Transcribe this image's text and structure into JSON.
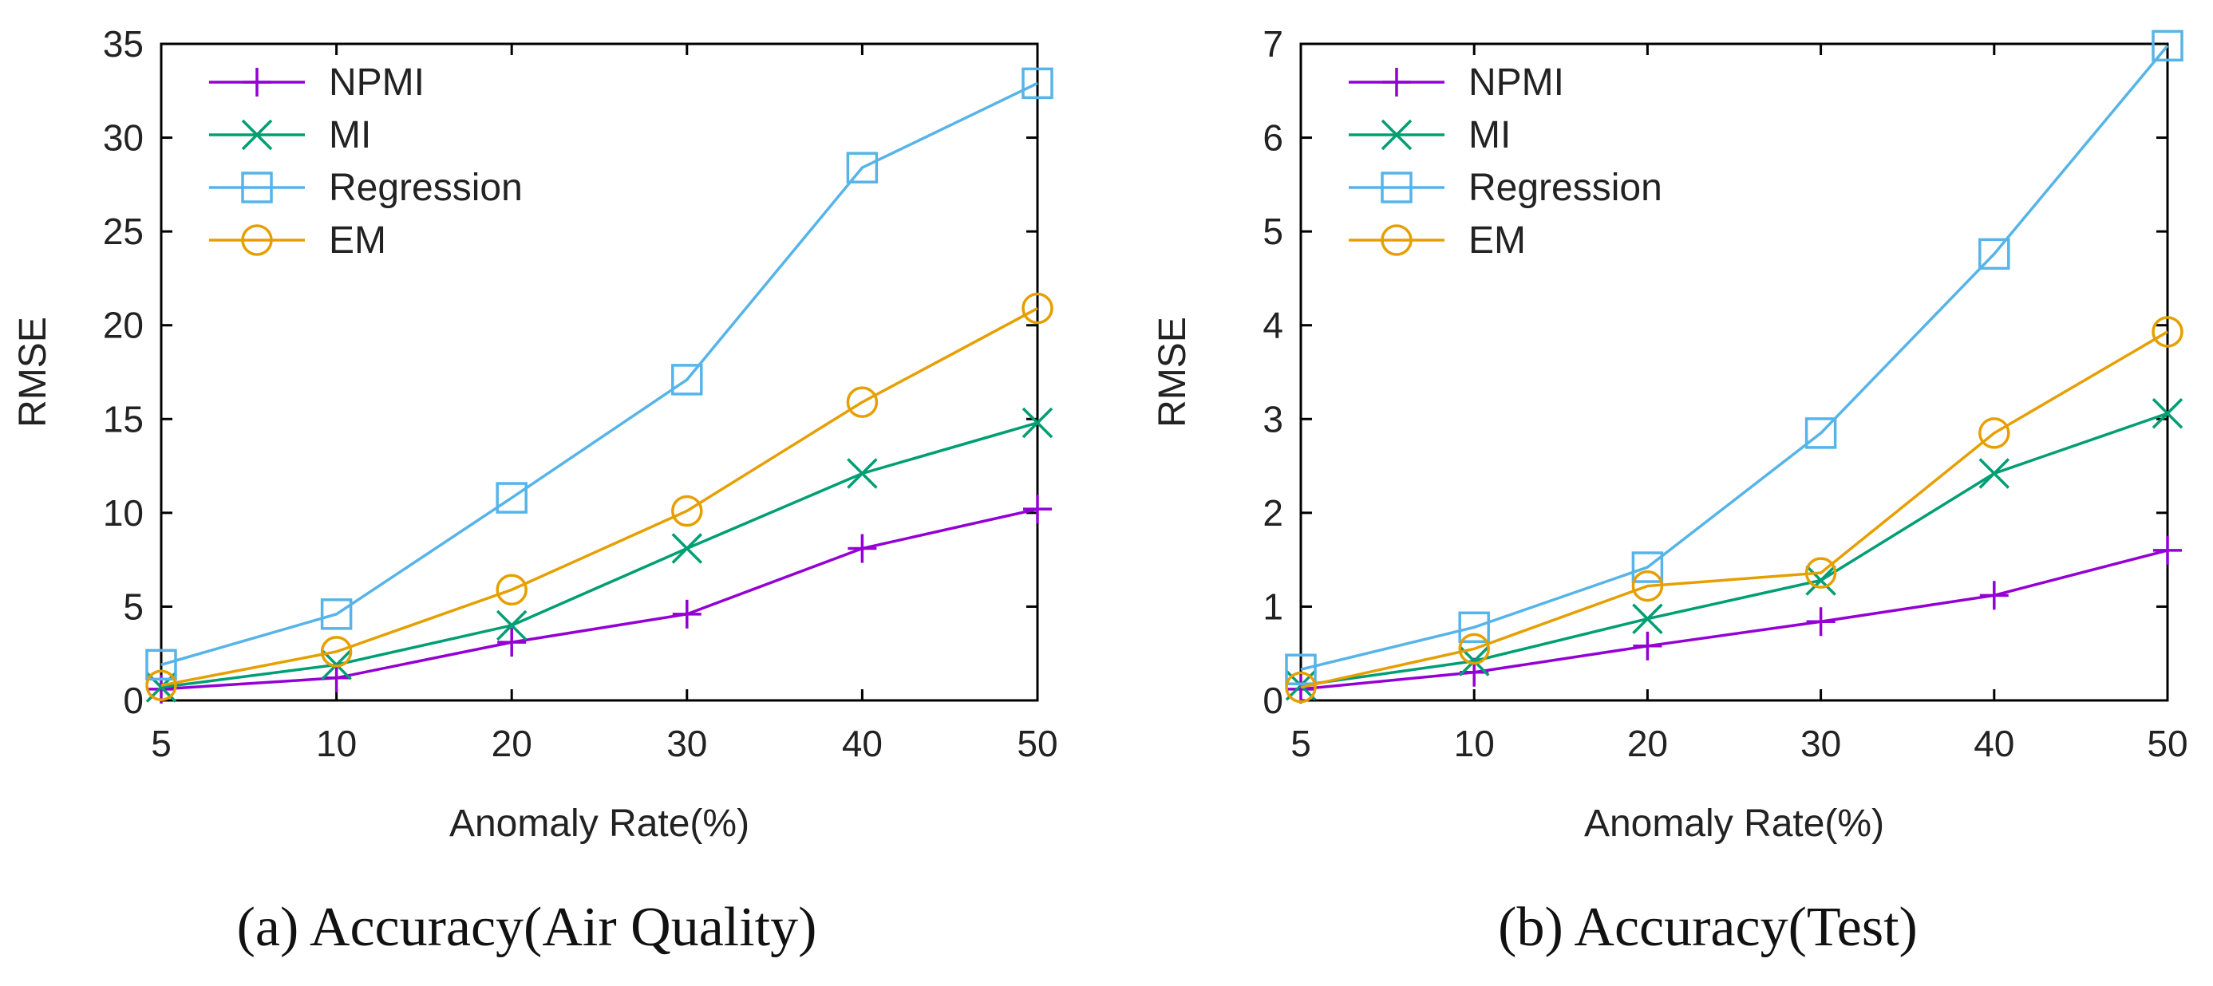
{
  "chart_data": [
    {
      "type": "line",
      "caption": "(a) Accuracy(Air Quality)",
      "xlabel": "Anomaly Rate(%)",
      "ylabel": "RMSE",
      "categories": [
        "5",
        "10",
        "20",
        "30",
        "40",
        "50"
      ],
      "ylim": [
        0,
        35
      ],
      "yticks": [
        0,
        5,
        10,
        15,
        20,
        25,
        30,
        35
      ],
      "legend_position": "top-left",
      "grid": false,
      "series": [
        {
          "name": "NPMI",
          "marker": "plus",
          "color": "#9400d3",
          "values": [
            0.6,
            1.2,
            3.1,
            4.6,
            8.1,
            10.2
          ]
        },
        {
          "name": "MI",
          "marker": "cross",
          "color": "#009e73",
          "values": [
            0.7,
            1.9,
            4.0,
            8.1,
            12.1,
            14.8
          ]
        },
        {
          "name": "Regression",
          "marker": "square",
          "color": "#56b4e9",
          "values": [
            1.9,
            4.6,
            10.8,
            17.1,
            28.4,
            32.9
          ]
        },
        {
          "name": "EM",
          "marker": "circle",
          "color": "#e69f00",
          "values": [
            0.8,
            2.6,
            5.9,
            10.1,
            15.9,
            20.9
          ]
        }
      ]
    },
    {
      "type": "line",
      "caption": "(b) Accuracy(Test)",
      "xlabel": "Anomaly Rate(%)",
      "ylabel": "RMSE",
      "categories": [
        "5",
        "10",
        "20",
        "30",
        "40",
        "50"
      ],
      "ylim": [
        0,
        7
      ],
      "yticks": [
        0,
        1,
        2,
        3,
        4,
        5,
        6,
        7
      ],
      "legend_position": "top-left",
      "grid": false,
      "series": [
        {
          "name": "NPMI",
          "marker": "plus",
          "color": "#9400d3",
          "values": [
            0.12,
            0.3,
            0.58,
            0.84,
            1.12,
            1.6
          ]
        },
        {
          "name": "MI",
          "marker": "cross",
          "color": "#009e73",
          "values": [
            0.16,
            0.42,
            0.87,
            1.28,
            2.42,
            3.06
          ]
        },
        {
          "name": "Regression",
          "marker": "square",
          "color": "#56b4e9",
          "values": [
            0.33,
            0.78,
            1.42,
            2.85,
            4.76,
            6.98
          ]
        },
        {
          "name": "EM",
          "marker": "circle",
          "color": "#e69f00",
          "values": [
            0.14,
            0.55,
            1.22,
            1.36,
            2.85,
            3.93
          ]
        }
      ]
    }
  ]
}
